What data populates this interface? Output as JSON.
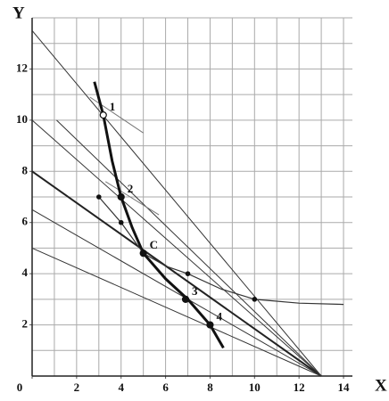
{
  "chart_data": {
    "type": "line",
    "x_label": "X",
    "y_label": "Y",
    "xlim": [
      0,
      14.4
    ],
    "ylim": [
      0,
      14
    ],
    "xticks": [
      0,
      2,
      4,
      6,
      8,
      10,
      12,
      14
    ],
    "yticks": [
      2,
      4,
      6,
      8,
      10,
      12
    ],
    "grid": true,
    "grid_step": 1,
    "series": [
      {
        "color": "#333",
        "width": 1,
        "x": [
          0,
          13
        ],
        "values": [
          13.5,
          0
        ]
      },
      {
        "color": "#333",
        "width": 1,
        "x": [
          0,
          13
        ],
        "values": [
          10,
          0
        ]
      },
      {
        "color": "#222",
        "width": 2,
        "x": [
          0,
          13
        ],
        "values": [
          8,
          0
        ]
      },
      {
        "color": "#333",
        "width": 1,
        "x": [
          0,
          13
        ],
        "values": [
          6.5,
          0
        ]
      },
      {
        "color": "#333",
        "width": 1,
        "x": [
          0,
          13
        ],
        "values": [
          5,
          0
        ]
      },
      {
        "color": "#333",
        "width": 1,
        "x": [
          1.1,
          13
        ],
        "values": [
          10,
          0
        ]
      },
      {
        "color": "#777",
        "width": 1,
        "x": [
          2.6,
          5
        ],
        "values": [
          10.9,
          9.5
        ]
      },
      {
        "color": "#777",
        "width": 1,
        "x": [
          3.3,
          5.7
        ],
        "values": [
          7.6,
          6.3
        ]
      },
      {
        "color": "#111",
        "width": 3,
        "x": [
          2.8,
          3.2,
          3.6,
          4,
          4.5,
          5,
          6,
          7,
          8,
          8.6
        ],
        "values": [
          11.5,
          10.2,
          8.4,
          7,
          5.8,
          4.8,
          3.8,
          3,
          2,
          1.1
        ]
      },
      {
        "color": "#333",
        "width": 1.2,
        "x": [
          3,
          4,
          5,
          6,
          7,
          8.5,
          10,
          12,
          14
        ],
        "values": [
          7,
          6,
          4.8,
          4.3,
          4,
          3.4,
          3,
          2.85,
          2.8
        ]
      },
      {
        "color": "#111",
        "width": 0,
        "markers": true,
        "x": [
          3,
          4,
          7,
          10
        ],
        "values": [
          7,
          6,
          4,
          3
        ]
      }
    ],
    "points": [
      {
        "label": "1",
        "x": 3.2,
        "y": 10.2,
        "open": true
      },
      {
        "label": "2",
        "x": 4,
        "y": 7
      },
      {
        "label": "C",
        "x": 5,
        "y": 4.8
      },
      {
        "label": "3",
        "x": 6.9,
        "y": 3
      },
      {
        "label": "4",
        "x": 8,
        "y": 2
      }
    ]
  }
}
